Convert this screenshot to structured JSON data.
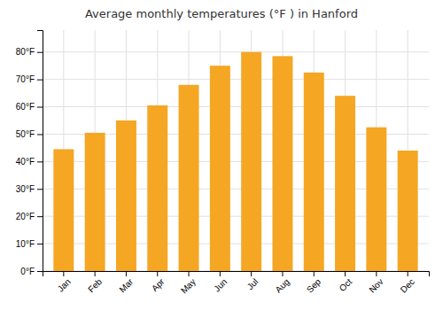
{
  "chart_data": {
    "type": "bar",
    "title": "Average monthly temperatures (°F ) in Hanford",
    "categories": [
      "Jan",
      "Feb",
      "Mar",
      "Apr",
      "May",
      "Jun",
      "Jul",
      "Aug",
      "Sep",
      "Oct",
      "Nov",
      "Dec"
    ],
    "values": [
      44.5,
      50.5,
      55.0,
      60.5,
      68.0,
      75.0,
      80.0,
      78.5,
      72.5,
      64.0,
      52.5,
      44.0
    ],
    "color": "#F5A623",
    "ylim": [
      0,
      88
    ],
    "yticks": [
      {
        "value": 0,
        "label": "0°F"
      },
      {
        "value": 10,
        "label": "10°F"
      },
      {
        "value": 20,
        "label": "20°F"
      },
      {
        "value": 30,
        "label": "30°F"
      },
      {
        "value": 40,
        "label": "40°F"
      },
      {
        "value": 50,
        "label": "50°F"
      },
      {
        "value": 60,
        "label": "60°F"
      },
      {
        "value": 70,
        "label": "70°F"
      },
      {
        "value": 80,
        "label": "80°F"
      }
    ],
    "grid": true
  }
}
